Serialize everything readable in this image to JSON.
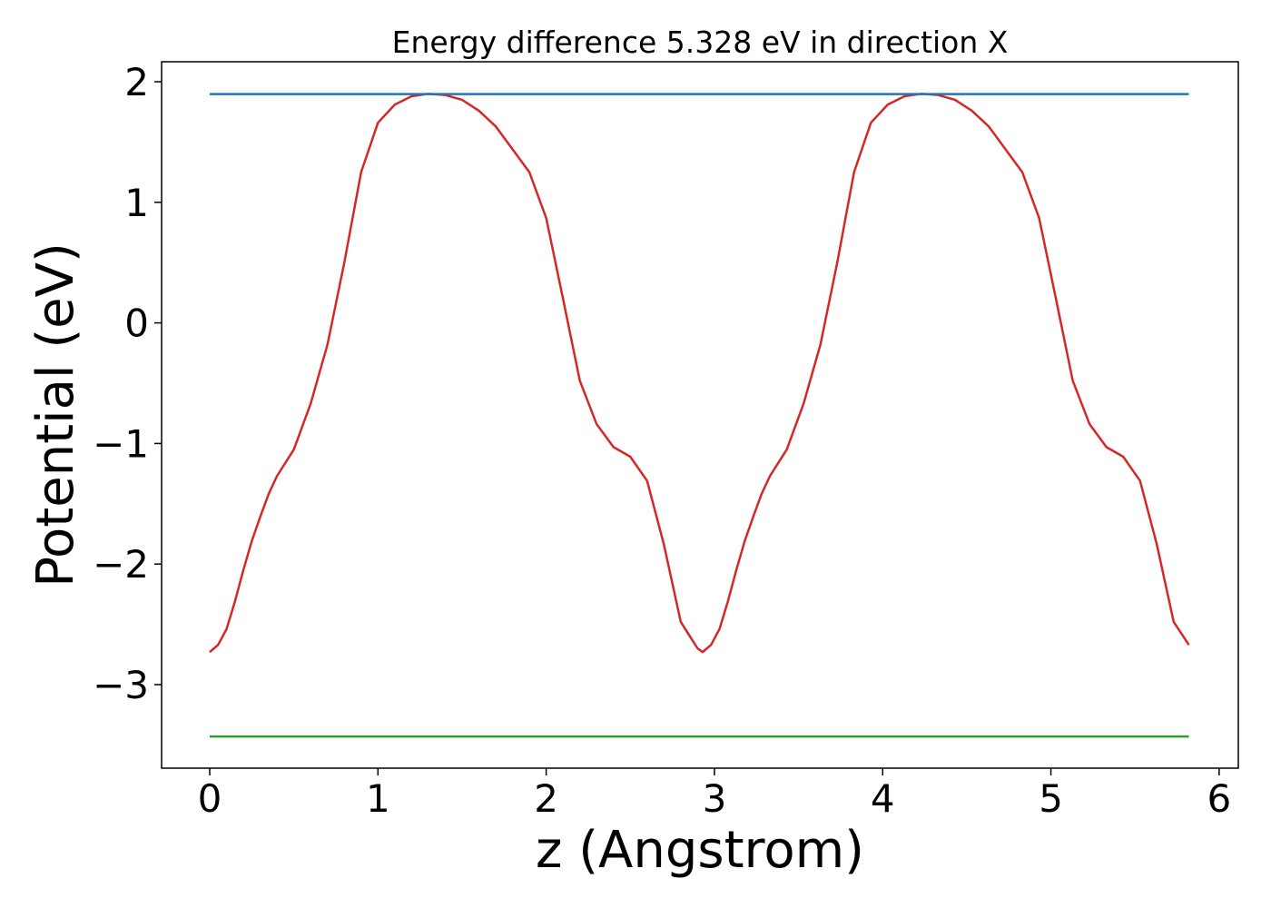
{
  "chart_data": {
    "type": "line",
    "title": "Energy difference 5.328 eV in direction X",
    "xlabel": "z (Angstrom)",
    "ylabel": "Potential (eV)",
    "xlim": [
      -0.286,
      6.114
    ],
    "ylim": [
      -3.693,
      2.166
    ],
    "xticks": [
      0,
      1,
      2,
      3,
      4,
      5,
      6
    ],
    "yticks": [
      {
        "value": -3,
        "label": "−3"
      },
      {
        "value": -2,
        "label": "−2"
      },
      {
        "value": -1,
        "label": "−1"
      },
      0,
      1,
      2
    ],
    "grid": false,
    "series": [
      {
        "color": "#d62728",
        "x": [
          0,
          0.05,
          0.1,
          0.15,
          0.2,
          0.25,
          0.3,
          0.35,
          0.4,
          0.5,
          0.6,
          0.7,
          0.8,
          0.9,
          1.0,
          1.1,
          1.2,
          1.3,
          1.4,
          1.5,
          1.6,
          1.7,
          1.8,
          1.9,
          2.0,
          2.1,
          2.2,
          2.3,
          2.4,
          2.5,
          2.6,
          2.7,
          2.8,
          2.9,
          2.93,
          2.98,
          3.03,
          3.08,
          3.13,
          3.18,
          3.23,
          3.28,
          3.33,
          3.43,
          3.53,
          3.63,
          3.73,
          3.83,
          3.93,
          4.03,
          4.13,
          4.23,
          4.33,
          4.43,
          4.53,
          4.63,
          4.73,
          4.83,
          4.93,
          5.03,
          5.13,
          5.23,
          5.33,
          5.43,
          5.53,
          5.63,
          5.73,
          5.82
        ],
        "values": [
          -2.73,
          -2.67,
          -2.54,
          -2.31,
          -2.05,
          -1.81,
          -1.61,
          -1.42,
          -1.27,
          -1.05,
          -0.67,
          -0.18,
          0.5,
          1.25,
          1.66,
          1.81,
          1.88,
          1.9,
          1.89,
          1.85,
          1.76,
          1.63,
          1.44,
          1.25,
          0.87,
          0.2,
          -0.48,
          -0.84,
          -1.03,
          -1.11,
          -1.31,
          -1.84,
          -2.48,
          -2.7,
          -2.73,
          -2.67,
          -2.54,
          -2.31,
          -2.05,
          -1.81,
          -1.61,
          -1.42,
          -1.27,
          -1.05,
          -0.67,
          -0.18,
          0.5,
          1.25,
          1.66,
          1.81,
          1.88,
          1.9,
          1.89,
          1.85,
          1.76,
          1.63,
          1.44,
          1.25,
          0.87,
          0.2,
          -0.48,
          -0.84,
          -1.03,
          -1.11,
          -1.31,
          -1.84,
          -2.48,
          -2.67
        ]
      },
      {
        "color": "#1f77b4",
        "x": [
          0,
          5.82
        ],
        "values": [
          1.898,
          1.898
        ]
      },
      {
        "color": "#2ca02c",
        "x": [
          0,
          5.82
        ],
        "values": [
          -3.43,
          -3.43
        ]
      }
    ]
  }
}
